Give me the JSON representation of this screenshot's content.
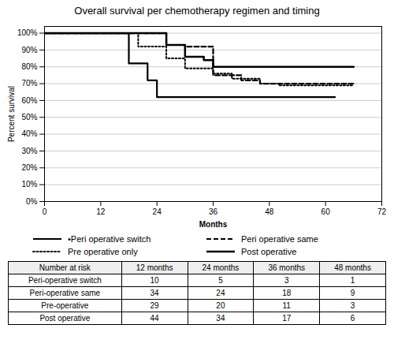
{
  "chart_data": {
    "type": "step",
    "title": "Overall survival per chemotherapy regimen and timing",
    "x_label": "Months",
    "y_label": "Percent survival",
    "xlim": [
      0,
      72
    ],
    "xticks": [
      0,
      12,
      24,
      36,
      48,
      60,
      72
    ],
    "ylim": [
      0,
      1.04
    ],
    "yticks": [
      {
        "value": 0.0,
        "label": "0%"
      },
      {
        "value": 0.1,
        "label": "10%"
      },
      {
        "value": 0.2,
        "label": "20%"
      },
      {
        "value": 0.3,
        "label": "30%"
      },
      {
        "value": 0.4,
        "label": "40%"
      },
      {
        "value": 0.5,
        "label": "50%"
      },
      {
        "value": 0.6,
        "label": "60%"
      },
      {
        "value": 0.7,
        "label": "70%"
      },
      {
        "value": 0.8,
        "label": "80%"
      },
      {
        "value": 0.9,
        "label": "90%"
      },
      {
        "value": 1.0,
        "label": "100%"
      }
    ],
    "grid": "y",
    "legend": "bottom",
    "series": [
      {
        "name": "•Peri operative switch",
        "color": "black",
        "line_style": "solid",
        "x": [
          0,
          15,
          18,
          22,
          24,
          62
        ],
        "values": [
          1.0,
          1.0,
          0.82,
          0.72,
          0.62,
          0.62
        ]
      },
      {
        "name": "Peri operative same",
        "color": "black",
        "line_style": "dashed",
        "x": [
          0,
          20,
          26,
          30,
          36,
          42,
          46,
          62,
          66
        ],
        "values": [
          1.0,
          1.0,
          0.93,
          0.92,
          0.75,
          0.72,
          0.7,
          0.7,
          0.7
        ]
      },
      {
        "name": "Pre operative only",
        "color": "black",
        "line_style": "dotted",
        "x": [
          0,
          16,
          20,
          26,
          30,
          36,
          40,
          46,
          50,
          62,
          66
        ],
        "values": [
          1.0,
          1.0,
          0.92,
          0.85,
          0.79,
          0.76,
          0.73,
          0.7,
          0.69,
          0.69,
          0.69
        ]
      },
      {
        "name": "Post operative",
        "color": "black",
        "line_style": "solid",
        "x": [
          0,
          20,
          26,
          30,
          34,
          36,
          60,
          66
        ],
        "values": [
          1.0,
          1.0,
          0.93,
          0.86,
          0.84,
          0.8,
          0.8,
          0.8
        ]
      }
    ],
    "table": {
      "headers": [
        "Number at risk",
        "12 months",
        "24 months",
        "36 months",
        "48 months"
      ],
      "rows": [
        [
          "Peri-operative switch",
          "10",
          "5",
          "3",
          "1"
        ],
        [
          "Peri-operative same",
          "34",
          "24",
          "18",
          "9"
        ],
        [
          "Pre-operative",
          "29",
          "20",
          "11",
          "3"
        ],
        [
          "Post operative",
          "44",
          "34",
          "17",
          "6"
        ]
      ]
    }
  }
}
